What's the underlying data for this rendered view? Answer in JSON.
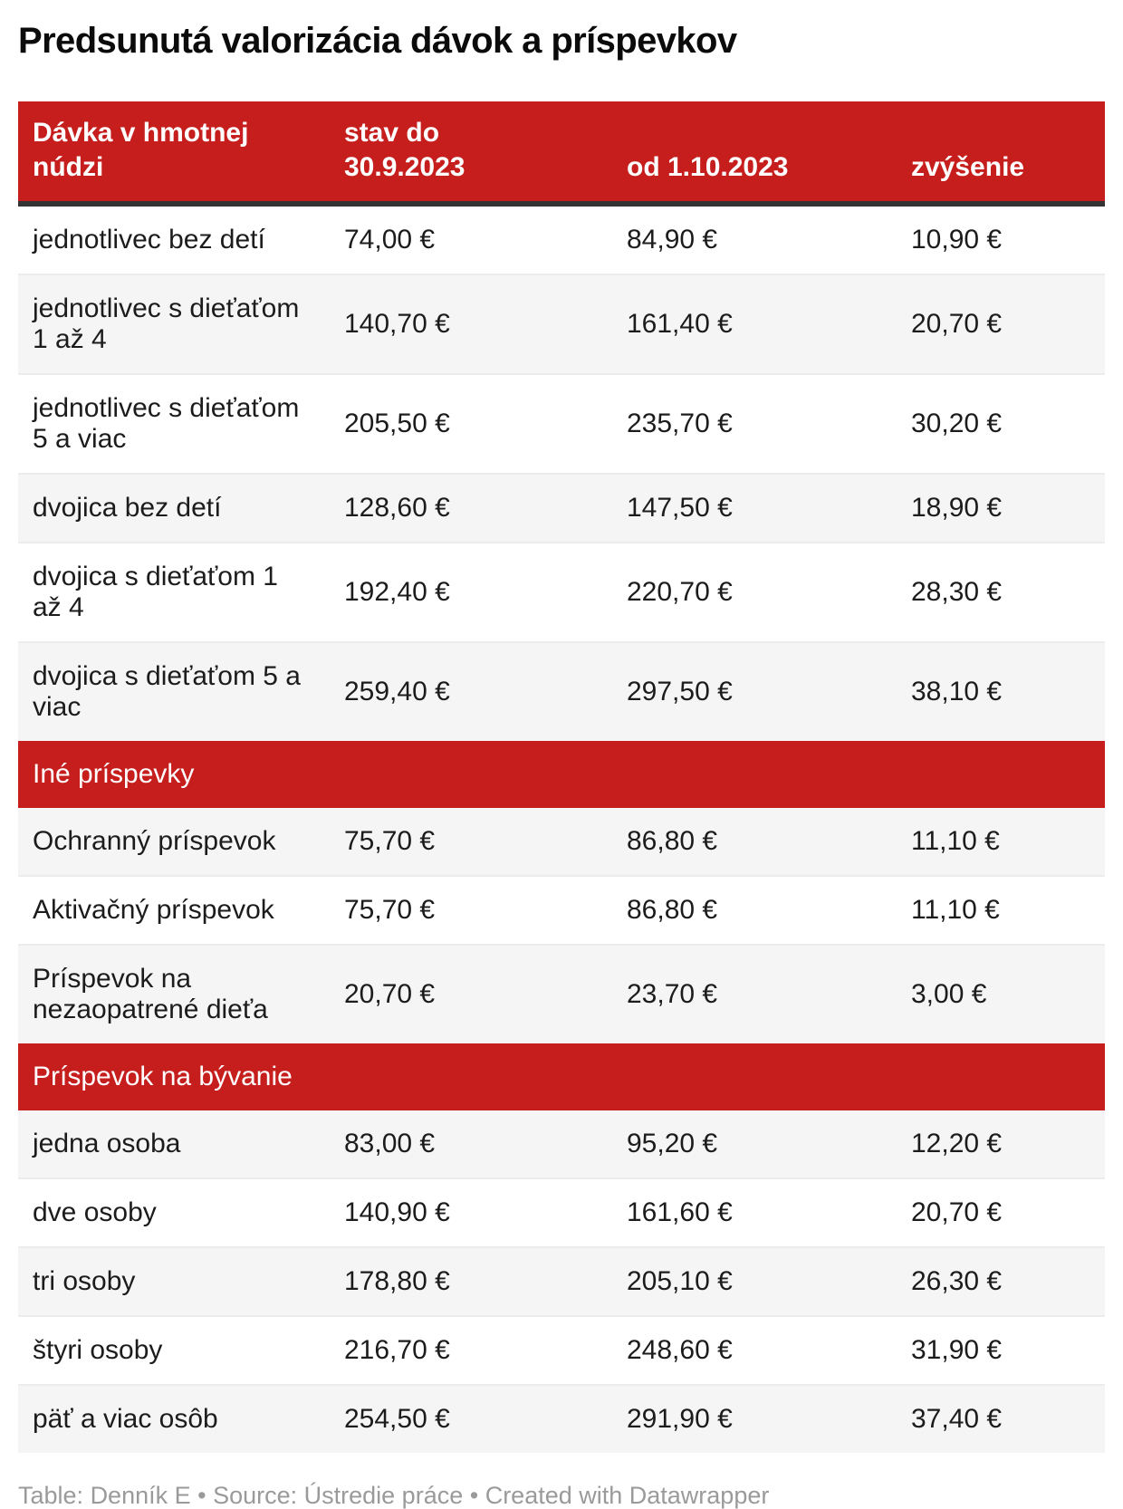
{
  "title": "Predsunutá valorizácia dávok a príspevkov",
  "colors": {
    "accent_red": "#c61e1d",
    "header_border": "#333333",
    "zebra_row": "#f5f5f5",
    "body_text": "#1c1c1c",
    "footer_text": "#9a9a9a"
  },
  "table": {
    "columns": [
      "Dávka v hmotnej\nnúdzi",
      "stav do\n30.9.2023",
      "od 1.10.2023",
      "zvýšenie"
    ],
    "rows": [
      {
        "type": "data",
        "label": "jednotlivec bez detí",
        "values": [
          "74,00 €",
          "84,90 €",
          "10,90 €"
        ]
      },
      {
        "type": "data",
        "label": "jednotlivec s dieťaťom\n1 až 4",
        "values": [
          "140,70 €",
          "161,40 €",
          "20,70 €"
        ]
      },
      {
        "type": "data",
        "label": "jednotlivec s dieťaťom\n5 a viac",
        "values": [
          "205,50 €",
          "235,70 €",
          "30,20 €"
        ]
      },
      {
        "type": "data",
        "label": "dvojica bez detí",
        "values": [
          "128,60 €",
          "147,50 €",
          "18,90 €"
        ]
      },
      {
        "type": "data",
        "label": "dvojica s dieťaťom 1\naž 4",
        "values": [
          "192,40 €",
          "220,70 €",
          "28,30 €"
        ]
      },
      {
        "type": "data",
        "label": "dvojica s dieťaťom 5 a\nviac",
        "values": [
          "259,40 €",
          "297,50 €",
          "38,10 €"
        ]
      },
      {
        "type": "section",
        "label": "Iné príspevky"
      },
      {
        "type": "data",
        "label": "Ochranný príspevok",
        "values": [
          "75,70 €",
          "86,80 €",
          "11,10 €"
        ]
      },
      {
        "type": "data",
        "label": "Aktivačný príspevok",
        "values": [
          "75,70 €",
          "86,80 €",
          "11,10 €"
        ]
      },
      {
        "type": "data",
        "label": "Príspevok na\nnezaopatrené dieťa",
        "values": [
          "20,70 €",
          "23,70 €",
          "3,00 €"
        ]
      },
      {
        "type": "section",
        "label": "Príspevok na bývanie"
      },
      {
        "type": "data",
        "label": "jedna osoba",
        "values": [
          "83,00 €",
          "95,20 €",
          "12,20 €"
        ]
      },
      {
        "type": "data",
        "label": "dve osoby",
        "values": [
          "140,90 €",
          "161,60 €",
          "20,70 €"
        ]
      },
      {
        "type": "data",
        "label": "tri osoby",
        "values": [
          "178,80 €",
          "205,10 €",
          "26,30 €"
        ]
      },
      {
        "type": "data",
        "label": "štyri osoby",
        "values": [
          "216,70 €",
          "248,60 €",
          "31,90 €"
        ]
      },
      {
        "type": "data",
        "label": "päť a viac osôb",
        "values": [
          "254,50 €",
          "291,90 €",
          "37,40 €"
        ]
      }
    ]
  },
  "footer": {
    "parts": [
      {
        "text": "Table: ",
        "link": false
      },
      {
        "text": "Denník E",
        "link": true
      },
      {
        "text": " • Source: ",
        "link": false
      },
      {
        "text": "Ústredie práce",
        "link": true
      },
      {
        "text": " • Created with ",
        "link": false
      },
      {
        "text": "Datawrapper",
        "link": true
      }
    ]
  },
  "chart_data": {
    "type": "table",
    "title": "Predsunutá valorizácia dávok a príspevkov",
    "columns": [
      "Dávka v hmotnej núdzi",
      "stav do 30.9.2023",
      "od 1.10.2023",
      "zvýšenie"
    ],
    "unit": "EUR",
    "sections": [
      {
        "name": "Dávka v hmotnej núdzi",
        "rows": [
          {
            "label": "jednotlivec bez detí",
            "stav_do_30_9_2023": 74.0,
            "od_1_10_2023": 84.9,
            "zvysenie": 10.9
          },
          {
            "label": "jednotlivec s dieťaťom 1 až 4",
            "stav_do_30_9_2023": 140.7,
            "od_1_10_2023": 161.4,
            "zvysenie": 20.7
          },
          {
            "label": "jednotlivec s dieťaťom 5 a viac",
            "stav_do_30_9_2023": 205.5,
            "od_1_10_2023": 235.7,
            "zvysenie": 30.2
          },
          {
            "label": "dvojica bez detí",
            "stav_do_30_9_2023": 128.6,
            "od_1_10_2023": 147.5,
            "zvysenie": 18.9
          },
          {
            "label": "dvojica s dieťaťom 1 až 4",
            "stav_do_30_9_2023": 192.4,
            "od_1_10_2023": 220.7,
            "zvysenie": 28.3
          },
          {
            "label": "dvojica s dieťaťom 5 a viac",
            "stav_do_30_9_2023": 259.4,
            "od_1_10_2023": 297.5,
            "zvysenie": 38.1
          }
        ]
      },
      {
        "name": "Iné príspevky",
        "rows": [
          {
            "label": "Ochranný príspevok",
            "stav_do_30_9_2023": 75.7,
            "od_1_10_2023": 86.8,
            "zvysenie": 11.1
          },
          {
            "label": "Aktivačný príspevok",
            "stav_do_30_9_2023": 75.7,
            "od_1_10_2023": 86.8,
            "zvysenie": 11.1
          },
          {
            "label": "Príspevok na nezaopatrené dieťa",
            "stav_do_30_9_2023": 20.7,
            "od_1_10_2023": 23.7,
            "zvysenie": 3.0
          }
        ]
      },
      {
        "name": "Príspevok na bývanie",
        "rows": [
          {
            "label": "jedna osoba",
            "stav_do_30_9_2023": 83.0,
            "od_1_10_2023": 95.2,
            "zvysenie": 12.2
          },
          {
            "label": "dve osoby",
            "stav_do_30_9_2023": 140.9,
            "od_1_10_2023": 161.6,
            "zvysenie": 20.7
          },
          {
            "label": "tri osoby",
            "stav_do_30_9_2023": 178.8,
            "od_1_10_2023": 205.1,
            "zvysenie": 26.3
          },
          {
            "label": "štyri osoby",
            "stav_do_30_9_2023": 216.7,
            "od_1_10_2023": 248.6,
            "zvysenie": 31.9
          },
          {
            "label": "päť a viac osôb",
            "stav_do_30_9_2023": 254.5,
            "od_1_10_2023": 291.9,
            "zvysenie": 37.4
          }
        ]
      }
    ]
  }
}
